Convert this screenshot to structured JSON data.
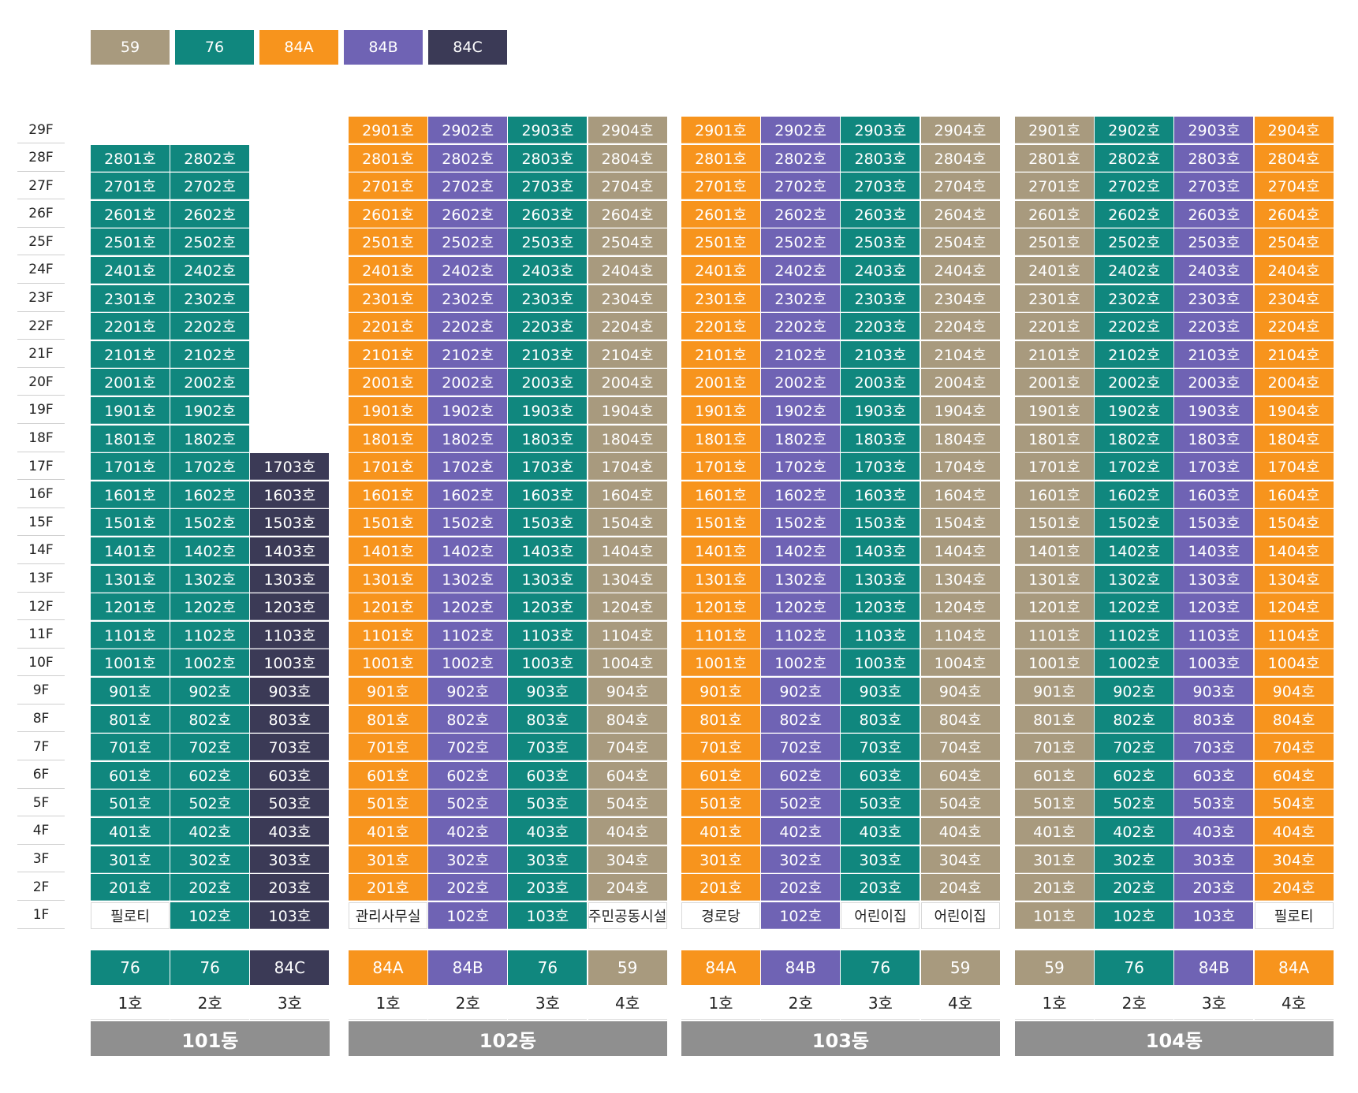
{
  "colors": {
    "59": "#a89a7e",
    "76": "#10877e",
    "84A": "#f7941d",
    "84B": "#6f63b4",
    "84C": "#3b3a56"
  },
  "legend": [
    "59",
    "76",
    "84A",
    "84B",
    "84C"
  ],
  "floors": [
    "29F",
    "28F",
    "27F",
    "26F",
    "25F",
    "24F",
    "23F",
    "22F",
    "21F",
    "20F",
    "19F",
    "18F",
    "17F",
    "16F",
    "15F",
    "14F",
    "13F",
    "12F",
    "11F",
    "10F",
    "9F",
    "8F",
    "7F",
    "6F",
    "5F",
    "4F",
    "3F",
    "2F",
    "1F"
  ],
  "unit_suffix": "호",
  "buildings": [
    {
      "name": "101동",
      "columns": [
        {
          "unit": "1호",
          "type": "76",
          "num": 1,
          "top_floor": 28,
          "ground": "필로티",
          "ground_facility": true
        },
        {
          "unit": "2호",
          "type": "76",
          "num": 2,
          "top_floor": 28,
          "ground": "102호",
          "ground_facility": false
        },
        {
          "unit": "3호",
          "type": "84C",
          "num": 3,
          "top_floor": 17,
          "ground": "103호",
          "ground_facility": false
        }
      ]
    },
    {
      "name": "102동",
      "columns": [
        {
          "unit": "1호",
          "type": "84A",
          "num": 1,
          "top_floor": 29,
          "ground": "관리사무실",
          "ground_facility": true
        },
        {
          "unit": "2호",
          "type": "84B",
          "num": 2,
          "top_floor": 29,
          "ground": "102호",
          "ground_facility": false
        },
        {
          "unit": "3호",
          "type": "76",
          "num": 3,
          "top_floor": 29,
          "ground": "103호",
          "ground_facility": false
        },
        {
          "unit": "4호",
          "type": "59",
          "num": 4,
          "top_floor": 29,
          "ground": "주민공동시설",
          "ground_facility": true
        }
      ]
    },
    {
      "name": "103동",
      "columns": [
        {
          "unit": "1호",
          "type": "84A",
          "num": 1,
          "top_floor": 29,
          "ground": "경로당",
          "ground_facility": true
        },
        {
          "unit": "2호",
          "type": "84B",
          "num": 2,
          "top_floor": 29,
          "ground": "102호",
          "ground_facility": false
        },
        {
          "unit": "3호",
          "type": "76",
          "num": 3,
          "top_floor": 29,
          "ground": "어린이집",
          "ground_facility": true
        },
        {
          "unit": "4호",
          "type": "59",
          "num": 4,
          "top_floor": 29,
          "ground": "어린이집",
          "ground_facility": true
        }
      ]
    },
    {
      "name": "104동",
      "columns": [
        {
          "unit": "1호",
          "type": "59",
          "num": 1,
          "top_floor": 29,
          "ground": "101호",
          "ground_facility": false
        },
        {
          "unit": "2호",
          "type": "76",
          "num": 2,
          "top_floor": 29,
          "ground": "102호",
          "ground_facility": false
        },
        {
          "unit": "3호",
          "type": "84B",
          "num": 3,
          "top_floor": 29,
          "ground": "103호",
          "ground_facility": false
        },
        {
          "unit": "4호",
          "type": "84A",
          "num": 4,
          "top_floor": 29,
          "ground": "필로티",
          "ground_facility": true
        }
      ]
    }
  ]
}
